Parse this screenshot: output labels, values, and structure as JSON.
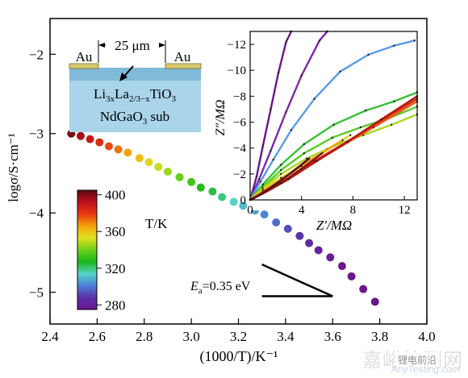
{
  "chart_data": [
    {
      "type": "scatter",
      "xlabel": "(1000/T)/K⁻¹",
      "ylabel": "logσ/S·cm⁻¹",
      "xlim": [
        2.4,
        4.0
      ],
      "ylim": [
        -5.4,
        -1.55
      ],
      "x_ticks": [
        "2.4",
        "2.6",
        "2.8",
        "3.0",
        "3.2",
        "3.4",
        "3.6",
        "3.8",
        "4.0"
      ],
      "y_ticks": [
        "−2",
        "−3",
        "−4",
        "−5"
      ],
      "grid": false,
      "series": [
        {
          "x": [
            2.49,
            2.53,
            2.57,
            2.61,
            2.65,
            2.69,
            2.73,
            2.78,
            2.82,
            2.86,
            2.9,
            2.95,
            3.0,
            3.04,
            3.09,
            3.13,
            3.18,
            3.22,
            3.27,
            3.31,
            3.36,
            3.41,
            3.46,
            3.5,
            3.54,
            3.59,
            3.64,
            3.68,
            3.73,
            3.78
          ],
          "y": [
            -3.0,
            -3.03,
            -3.07,
            -3.11,
            -3.16,
            -3.2,
            -3.24,
            -3.31,
            -3.36,
            -3.42,
            -3.48,
            -3.55,
            -3.61,
            -3.68,
            -3.73,
            -3.8,
            -3.86,
            -3.91,
            -3.97,
            -4.02,
            -4.12,
            -4.2,
            -4.29,
            -4.38,
            -4.47,
            -4.56,
            -4.67,
            -4.8,
            -4.96,
            -5.12
          ],
          "T": [
            401,
            395,
            389,
            383,
            377,
            372,
            366,
            360,
            355,
            350,
            345,
            339,
            333,
            329,
            324,
            319,
            314,
            310,
            306,
            302,
            298,
            293,
            289,
            286,
            282,
            279,
            275,
            272,
            268,
            265
          ]
        }
      ],
      "colorbar": {
        "label": "T/K",
        "range": [
          275,
          405
        ],
        "ticks": [
          "400",
          "360",
          "320",
          "280"
        ],
        "colors": [
          "#5a0a14",
          "#c0101c",
          "#e83a10",
          "#f4a40a",
          "#e0e020",
          "#6ed018",
          "#18b818",
          "#58d2c8",
          "#4a80d8",
          "#5a30a8",
          "#6a1690"
        ]
      },
      "annotation": {
        "text_E": "E",
        "text_sub": "a",
        "text_rest": "=0.35 eV",
        "slope_line": {
          "x": [
            3.3,
            3.6
          ],
          "y": [
            -4.65,
            -5.05
          ]
        },
        "base_line": {
          "x": [
            3.3,
            3.6
          ],
          "y": [
            -5.05,
            -5.05
          ]
        }
      }
    },
    {
      "type": "line",
      "name": "inset-nyquist",
      "xlabel": "Z′/MΩ",
      "ylabel": "Z″/MΩ",
      "xlim": [
        0,
        13
      ],
      "ylim": [
        0,
        -13
      ],
      "x_ticks": [
        "0",
        "4",
        "8",
        "12"
      ],
      "y_ticks": [
        "0",
        "−2",
        "−4",
        "−6",
        "−8",
        "−10",
        "−12"
      ],
      "grid": false,
      "series": [
        {
          "color": "#6a1690",
          "x": [
            0,
            0.5,
            1,
            1.6,
            2.2,
            2.8,
            3.2
          ],
          "y": [
            0,
            -1.8,
            -4.2,
            -7,
            -9.8,
            -12.2,
            -13
          ]
        },
        {
          "color": "#7a2aa8",
          "x": [
            0,
            0.7,
            1.6,
            2.8,
            4,
            5.4,
            6
          ],
          "y": [
            0,
            -1.6,
            -3.8,
            -6.8,
            -9.6,
            -12.3,
            -13
          ]
        },
        {
          "color": "#5a9ae6",
          "x": [
            0,
            0.8,
            1.8,
            3.2,
            5,
            7,
            9.2,
            11.2,
            12.8
          ],
          "y": [
            0,
            -1.4,
            -3.1,
            -5.4,
            -7.8,
            -9.9,
            -11.2,
            -11.9,
            -12.3
          ]
        },
        {
          "color": "#36c236",
          "x": [
            0,
            1,
            2.4,
            4.2,
            6.5,
            9,
            11.2,
            13
          ],
          "y": [
            0,
            -1.2,
            -2.7,
            -4.3,
            -5.8,
            -6.9,
            -7.6,
            -8.3
          ]
        },
        {
          "color": "#58cc28",
          "x": [
            0,
            1,
            2.4,
            4.2,
            6.4,
            8.6,
            10.8,
            13
          ],
          "y": [
            0,
            -1.0,
            -2.3,
            -3.6,
            -4.8,
            -5.6,
            -6.3,
            -7.2
          ]
        },
        {
          "color": "#a8d820",
          "x": [
            0,
            1,
            2.4,
            4.4,
            6.6,
            8.8,
            11,
            13
          ],
          "y": [
            0,
            -0.9,
            -2.0,
            -3.2,
            -4.2,
            -5.0,
            -5.8,
            -6.6
          ]
        },
        {
          "color": "#e8d018",
          "x": [
            0,
            1,
            2.4,
            4.2,
            6,
            7.8
          ],
          "y": [
            0,
            -0.8,
            -1.7,
            -2.8,
            -3.9,
            -5.0
          ]
        },
        {
          "color": "#f0a010",
          "x": [
            0,
            1,
            2.4,
            4,
            5.6,
            7.2
          ],
          "y": [
            0,
            -0.7,
            -1.5,
            -2.6,
            -3.6,
            -4.6
          ]
        },
        {
          "color": "#e85a10",
          "x": [
            0,
            1.2,
            3,
            5,
            7.2,
            9.6,
            13
          ],
          "y": [
            0,
            -0.7,
            -1.7,
            -2.9,
            -4.2,
            -5.6,
            -7.6
          ]
        },
        {
          "color": "#d42a10",
          "x": [
            0,
            1.2,
            3,
            5,
            7.4,
            10,
            13
          ],
          "y": [
            0,
            -0.7,
            -1.7,
            -3.0,
            -4.4,
            -6.0,
            -7.8
          ]
        },
        {
          "color": "#b81812",
          "x": [
            0,
            1.2,
            3,
            5.2,
            7.6,
            10.2,
            13
          ],
          "y": [
            0,
            -0.6,
            -1.6,
            -3.0,
            -4.5,
            -6.2,
            -8.0
          ]
        },
        {
          "color": "#8a1414",
          "x": [
            0,
            1,
            2.4,
            4,
            5.6
          ],
          "y": [
            0,
            -0.5,
            -1.3,
            -2.4,
            -3.6
          ]
        },
        {
          "color": "#5a0a14",
          "x": [
            0,
            0.8,
            1.8,
            3.2,
            4.6
          ],
          "y": [
            0,
            -0.4,
            -1.1,
            -2.1,
            -3.2
          ]
        }
      ]
    }
  ],
  "schematic": {
    "gap_label": "25 μm",
    "electrode_left": "Au",
    "electrode_right": "Au",
    "film_li": "Li",
    "film_sub1": "3x",
    "film_la": "La",
    "film_sub2": "2/3−x",
    "film_rest": "TiO",
    "film_sub3": "3",
    "substrate": "NdGaO",
    "substrate_sub": "3",
    "substrate_rest": " sub"
  },
  "watermark": {
    "cn": "嘉峪检测网",
    "en": "AnyTesting.com",
    "badge": "锂电前沿"
  }
}
